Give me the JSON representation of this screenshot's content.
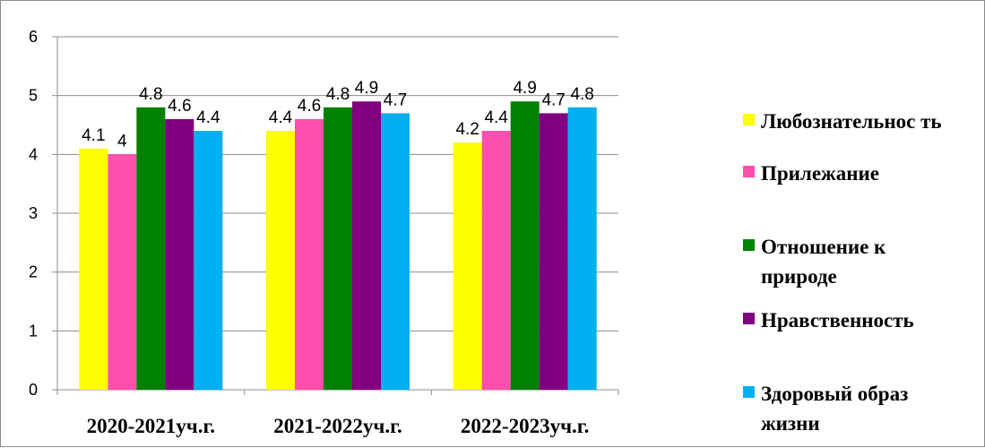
{
  "chart_data": {
    "type": "bar",
    "categories": [
      "2020-2021уч.г.",
      "2021-2022уч.г.",
      "2022-2023уч.г."
    ],
    "series": [
      {
        "name": "Любознательность",
        "color": "#FFFF00",
        "values": [
          4.1,
          4.4,
          4.2
        ],
        "labels": [
          "4.1",
          "4.4",
          "4.2"
        ]
      },
      {
        "name": "Прилежание",
        "color": "#FF4FAE",
        "values": [
          4.0,
          4.6,
          4.4
        ],
        "labels": [
          "4",
          "4.6",
          "4.4"
        ]
      },
      {
        "name": "Отношение к природе",
        "color": "#008000",
        "values": [
          4.8,
          4.8,
          4.9
        ],
        "labels": [
          "4.8",
          "4.8",
          "4.9"
        ]
      },
      {
        "name": "Нравственность",
        "color": "#800080",
        "values": [
          4.6,
          4.9,
          4.7
        ],
        "labels": [
          "4.6",
          "4.9",
          "4.7"
        ]
      },
      {
        "name": "Здоровый образ жизни",
        "color": "#00B0F0",
        "values": [
          4.4,
          4.7,
          4.8
        ],
        "labels": [
          "4.4",
          "4.7",
          "4.8"
        ]
      }
    ],
    "ylim": [
      0,
      6
    ],
    "yticks": [
      "0",
      "1",
      "2",
      "3",
      "4",
      "5",
      "6"
    ],
    "grid": true,
    "legend_position": "right",
    "title": "",
    "xlabel": "",
    "ylabel": ""
  },
  "legend": {
    "items": [
      {
        "label": "Любознательнос ть",
        "color": "#FFFF00"
      },
      {
        "label": "Прилежание",
        "color": "#FF4FAE"
      },
      {
        "label": "Отношение к природе",
        "color": "#008000"
      },
      {
        "label": "Нравственность",
        "color": "#800080"
      },
      {
        "label": "Здоровый образ жизни",
        "color": "#00B0F0"
      }
    ]
  }
}
